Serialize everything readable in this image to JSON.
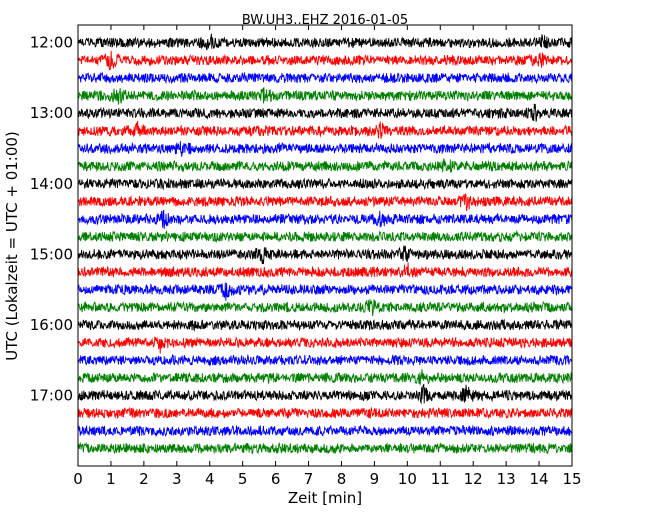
{
  "chart_data": {
    "type": "line",
    "title": "BW.UH3..EHZ 2016-01-05",
    "xlabel": "Zeit  [min]",
    "ylabel": "UTC (Lokalzeit = UTC + 01:00)",
    "xlim": [
      0,
      15
    ],
    "x_ticks": [
      "0",
      "1",
      "2",
      "3",
      "4",
      "5",
      "6",
      "7",
      "8",
      "9",
      "10",
      "11",
      "12",
      "13",
      "14",
      "15"
    ],
    "y_range_utc": [
      "11:45",
      "18:00"
    ],
    "y_tick_labels": [
      "12:00",
      "13:00",
      "14:00",
      "15:00",
      "16:00",
      "17:00"
    ],
    "trace_interval_min": 15,
    "grid": false,
    "colors": [
      "#000000",
      "#ff0000",
      "#0000ff",
      "#008000"
    ],
    "events": [
      {
        "start": "12:00",
        "minute": 4.0
      },
      {
        "start": "12:00",
        "minute": 14.1
      },
      {
        "start": "12:15",
        "minute": 1.0
      },
      {
        "start": "12:15",
        "minute": 14.0
      },
      {
        "start": "12:45",
        "minute": 1.2
      },
      {
        "start": "12:45",
        "minute": 5.7
      },
      {
        "start": "13:00",
        "minute": 13.9
      },
      {
        "start": "13:15",
        "minute": 1.8
      },
      {
        "start": "13:15",
        "minute": 9.2
      },
      {
        "start": "13:30",
        "minute": 3.2
      },
      {
        "start": "13:45",
        "minute": 11.2
      },
      {
        "start": "14:15",
        "minute": 11.8
      },
      {
        "start": "14:30",
        "minute": 2.6
      },
      {
        "start": "14:30",
        "minute": 9.2
      },
      {
        "start": "15:00",
        "minute": 5.6
      },
      {
        "start": "15:00",
        "minute": 9.9
      },
      {
        "start": "15:15",
        "minute": 10.0
      },
      {
        "start": "15:30",
        "minute": 4.5
      },
      {
        "start": "15:45",
        "minute": 8.9
      },
      {
        "start": "16:15",
        "minute": 2.5
      },
      {
        "start": "16:45",
        "minute": 10.5
      },
      {
        "start": "17:00",
        "minute": 10.5
      },
      {
        "start": "17:00",
        "minute": 11.8
      }
    ]
  }
}
